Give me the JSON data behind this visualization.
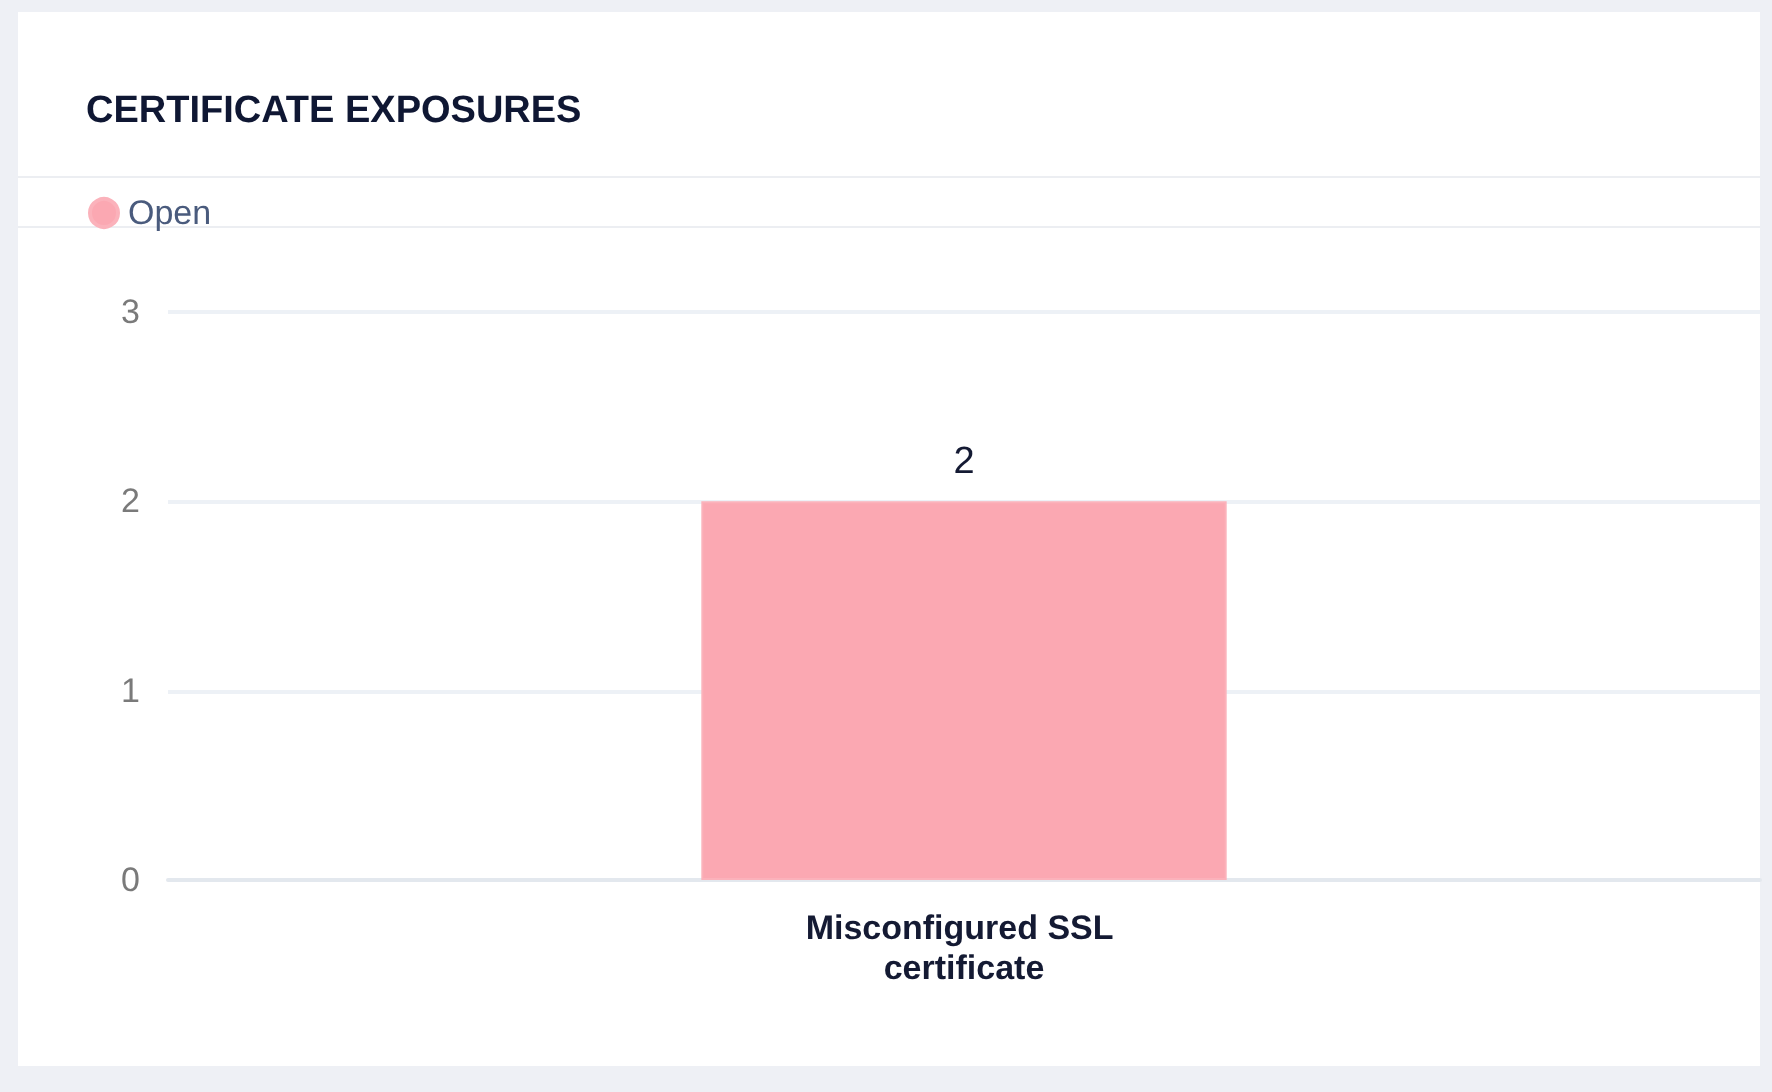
{
  "chart_data": {
    "type": "bar",
    "title": "CERTIFICATE EXPOSURES",
    "categories": [
      "Misconfigured SSL certificate"
    ],
    "series": [
      {
        "name": "Open",
        "color": "#fba8b2",
        "values": [
          2
        ]
      }
    ],
    "ylim": [
      0,
      3
    ],
    "yticks": [
      0,
      1,
      2,
      3
    ],
    "grid": "y",
    "legend": "top left",
    "data_labels": true
  }
}
